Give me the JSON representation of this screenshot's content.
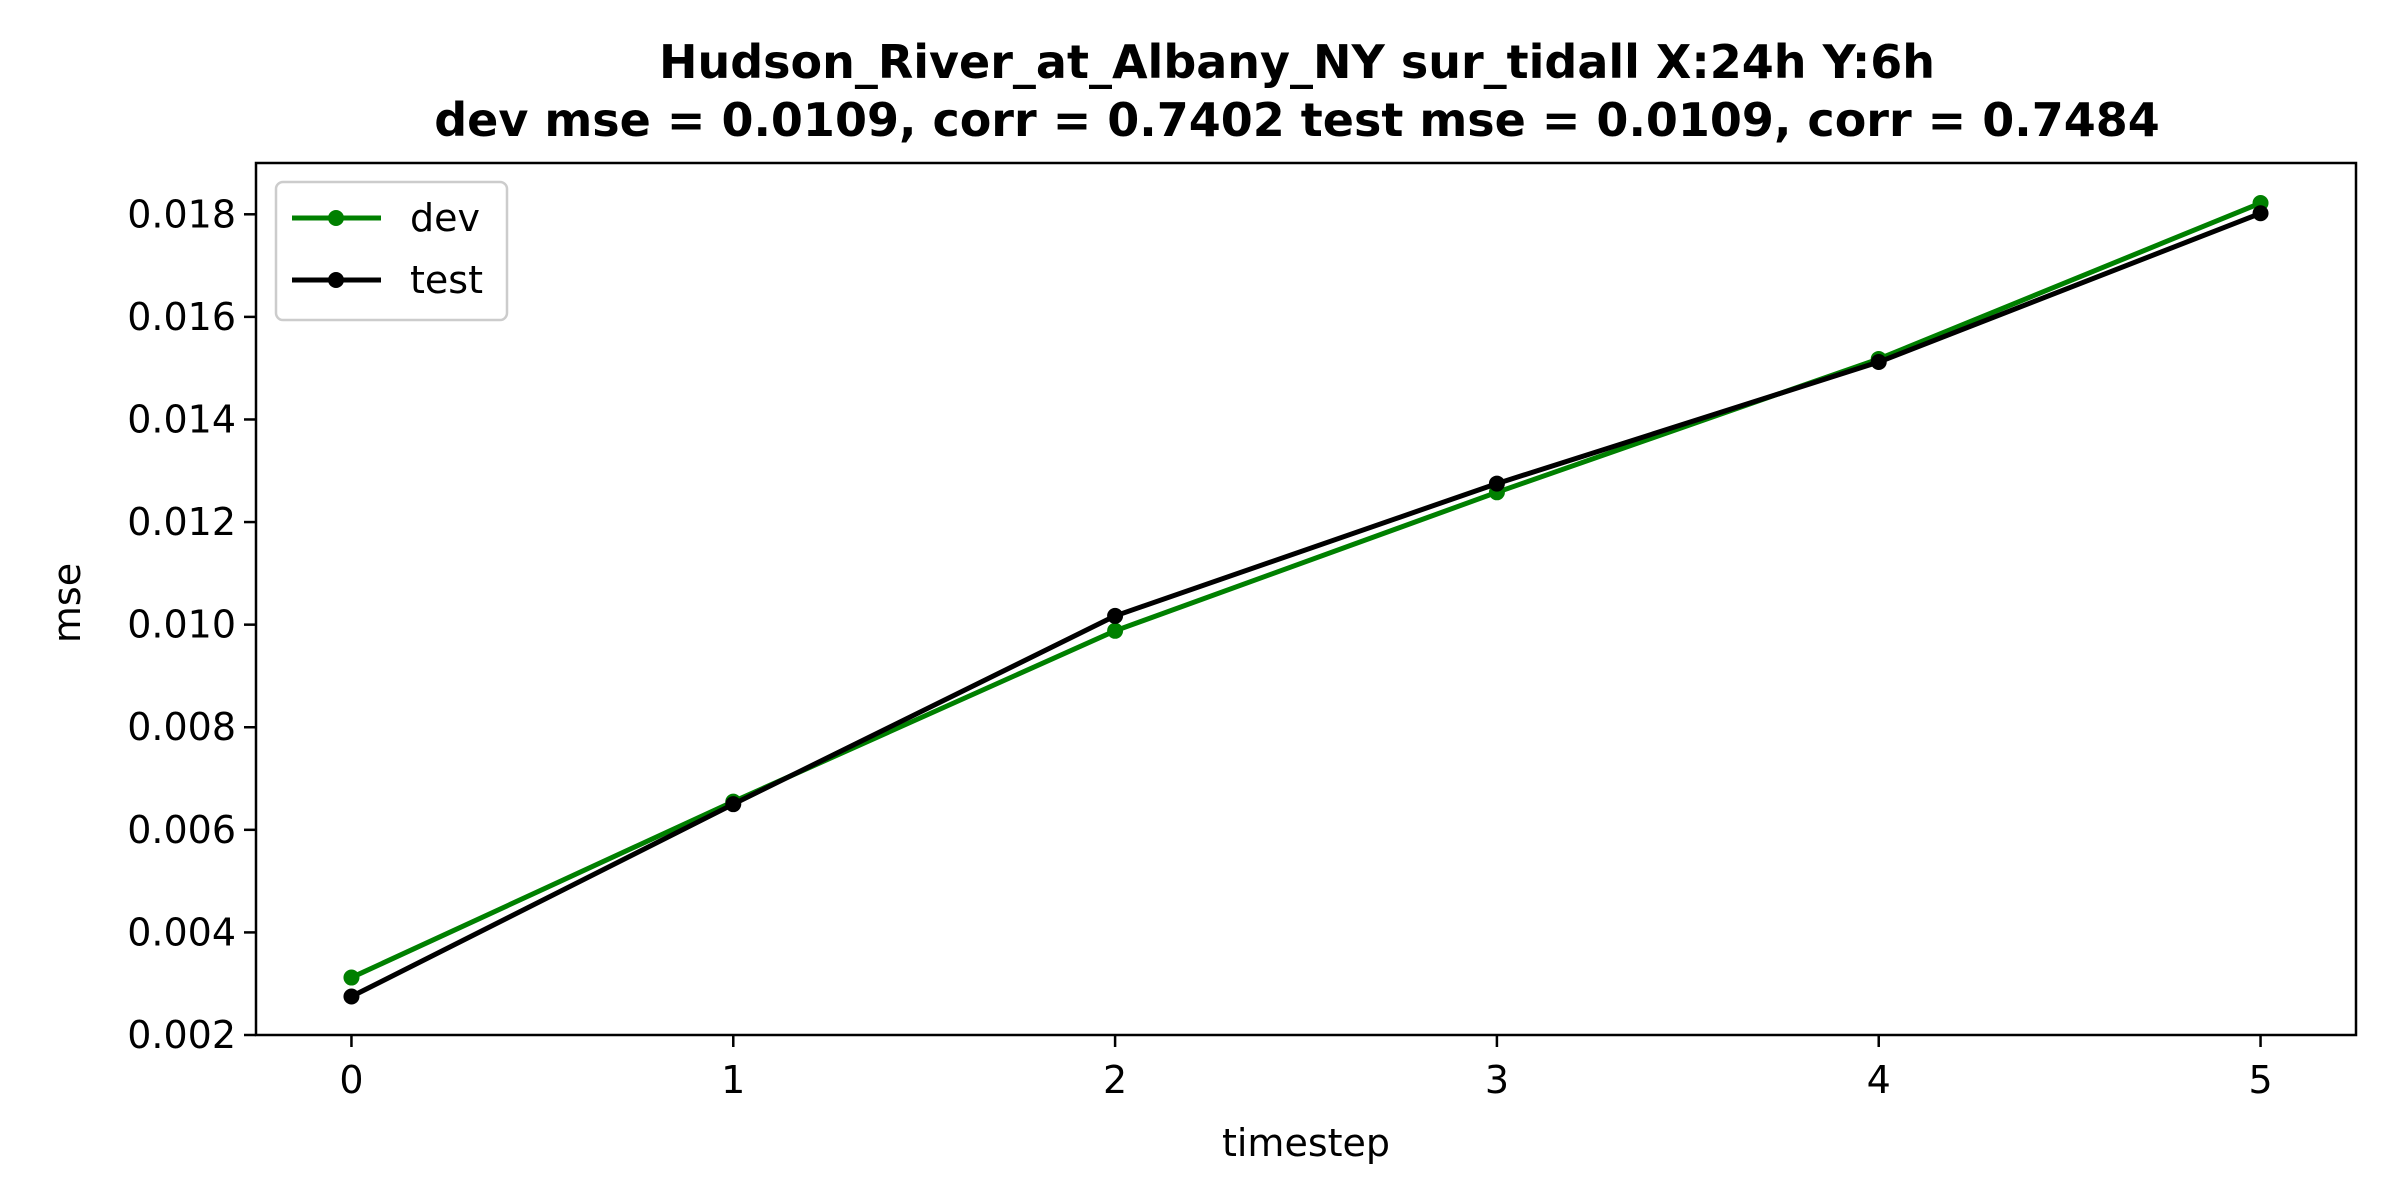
{
  "chart_data": {
    "type": "line",
    "title_line1": "Hudson_River_at_Albany_NY   sur_tidall   X:24h   Y:6h",
    "title_line2": "dev mse = 0.0109, corr = 0.7402   test mse = 0.0109, corr = 0.7484",
    "xlabel": "timestep",
    "ylabel": "mse",
    "x": [
      0,
      1,
      2,
      3,
      4,
      5
    ],
    "xlim": [
      -0.25,
      5.25
    ],
    "ylim": [
      0.002,
      0.019
    ],
    "xticks": [
      "0",
      "1",
      "2",
      "3",
      "4",
      "5"
    ],
    "yticks": [
      "0.002",
      "0.004",
      "0.006",
      "0.008",
      "0.010",
      "0.012",
      "0.014",
      "0.016",
      "0.018"
    ],
    "grid": false,
    "legend_position": "upper-left",
    "series": [
      {
        "name": "dev",
        "color": "#008000",
        "values": [
          0.00312,
          0.00655,
          0.00988,
          0.01258,
          0.01518,
          0.01822
        ]
      },
      {
        "name": "test",
        "color": "#000000",
        "values": [
          0.00275,
          0.0065,
          0.01017,
          0.01275,
          0.01512,
          0.01802
        ]
      }
    ]
  }
}
